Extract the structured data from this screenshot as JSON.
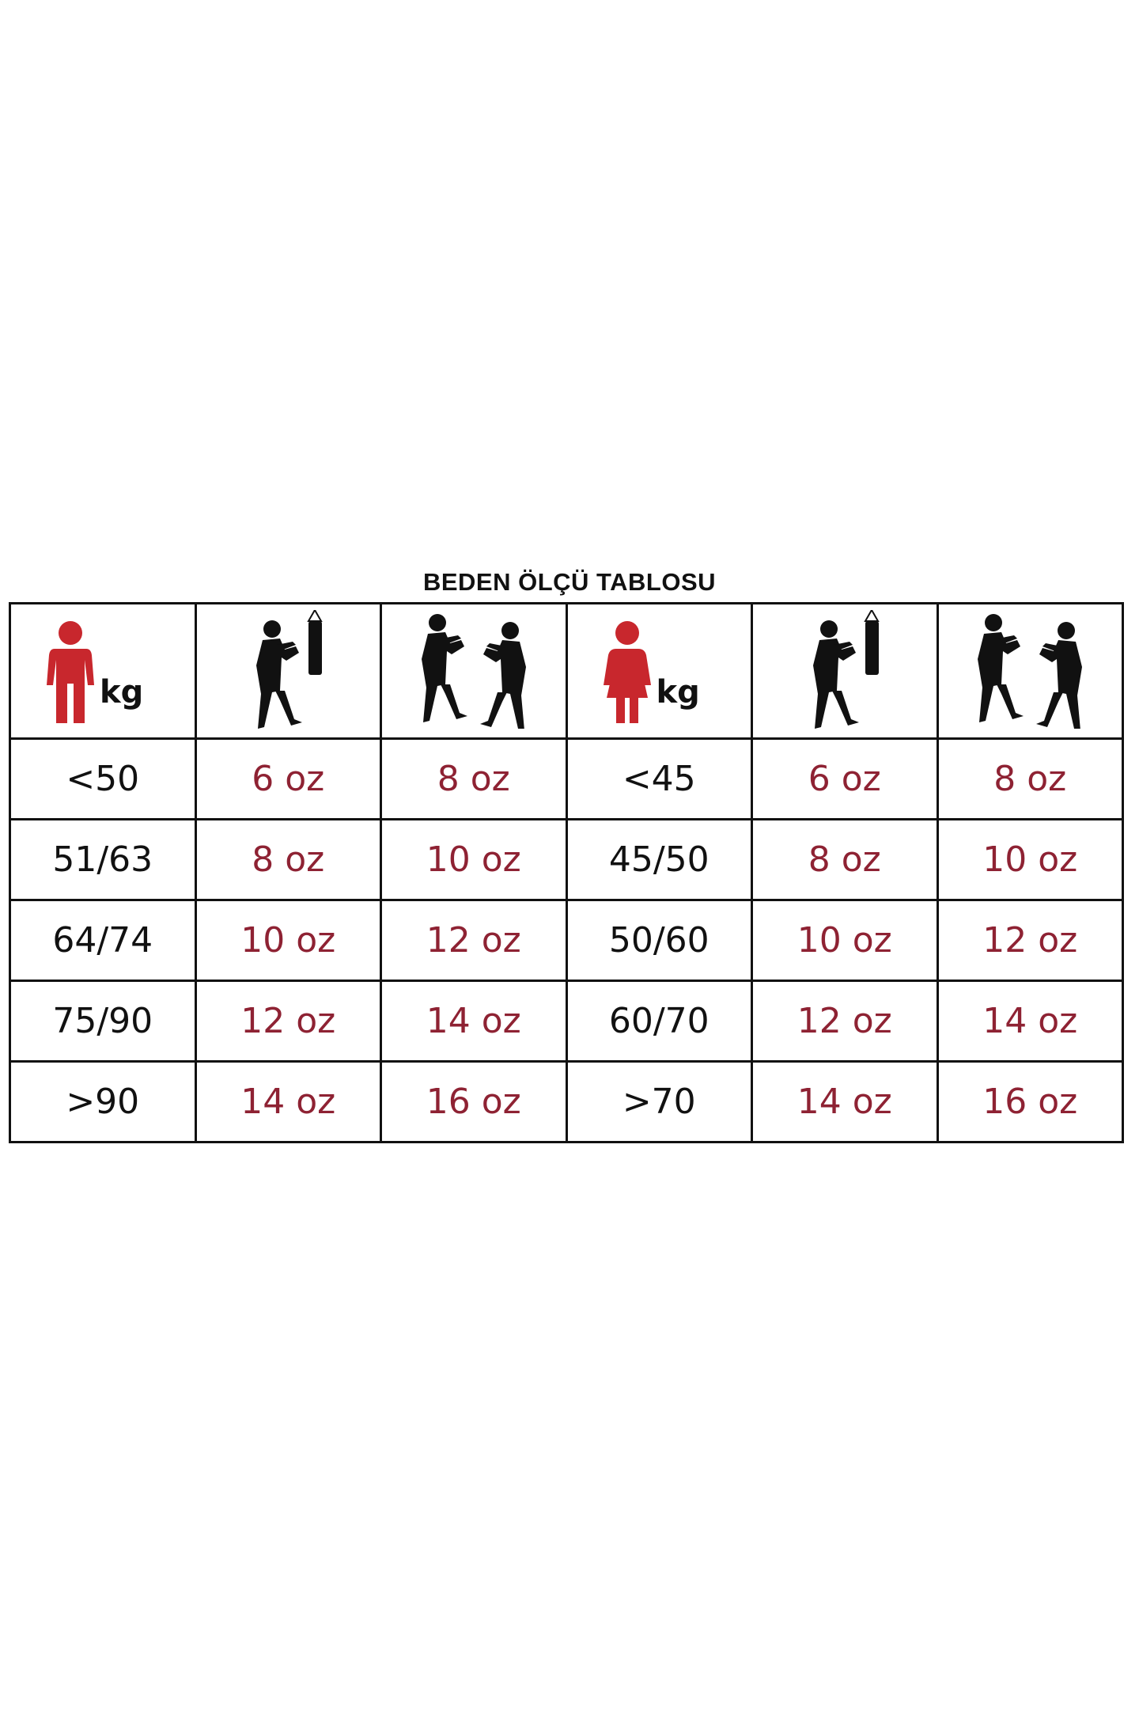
{
  "title": "BEDEN ÖLÇÜ TABLOSU",
  "colors": {
    "figure_red": "#c8272d",
    "size_text": "#8e2233",
    "border": "#111111"
  },
  "header": {
    "men": {
      "icon": "male-figure-icon",
      "unit": "kg"
    },
    "bag": {
      "icon": "boxer-punching-bag-icon"
    },
    "sparring": {
      "icon": "boxers-sparring-icon"
    },
    "women": {
      "icon": "female-figure-icon",
      "unit": "kg"
    }
  },
  "rows": [
    {
      "men_kg": "<50",
      "men_bag": "6 oz",
      "men_spar": "8 oz",
      "women_kg": "<45",
      "women_bag": "6 oz",
      "women_spar": "8 oz"
    },
    {
      "men_kg": "51/63",
      "men_bag": "8 oz",
      "men_spar": "10 oz",
      "women_kg": "45/50",
      "women_bag": "8 oz",
      "women_spar": "10 oz"
    },
    {
      "men_kg": "64/74",
      "men_bag": "10 oz",
      "men_spar": "12 oz",
      "women_kg": "50/60",
      "women_bag": "10 oz",
      "women_spar": "12 oz"
    },
    {
      "men_kg": "75/90",
      "men_bag": "12 oz",
      "men_spar": "14 oz",
      "women_kg": "60/70",
      "women_bag": "12 oz",
      "women_spar": "14 oz"
    },
    {
      "men_kg": ">90",
      "men_bag": "14 oz",
      "men_spar": "16 oz",
      "women_kg": ">70",
      "women_bag": "14 oz",
      "women_spar": "16 oz"
    }
  ]
}
